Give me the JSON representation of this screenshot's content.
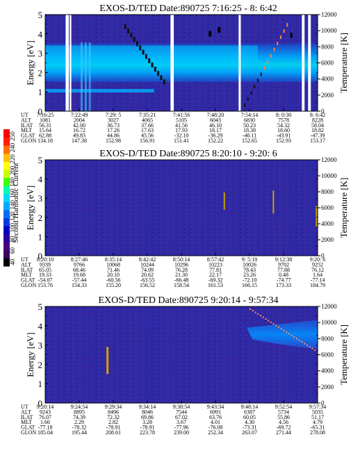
{
  "colorbar": {
    "label": "Second Harmonic Current",
    "ticks": [
      "40",
      "60",
      "80",
      "100",
      "120",
      "140",
      "160",
      "180",
      "200",
      "220",
      "240",
      "250"
    ],
    "colors": [
      "#000000",
      "#3a0060",
      "#4b007a",
      "#2a00a0",
      "#0000c8",
      "#0038e0",
      "#0070f0",
      "#00a8ff",
      "#00d8ff",
      "#00ffb0",
      "#40ff00",
      "#c8ff00",
      "#ffff00",
      "#ffc000",
      "#ff7000",
      "#ff2000",
      "#ff0000"
    ]
  },
  "chart_data": [
    {
      "type": "heatmap",
      "title": "EXOS-D/TED   Date:890725  7:16:25 - 8: 6:42",
      "ylabel": "Energy [eV]",
      "y2label": "Temperature [K]",
      "yticks": [
        "0",
        "1",
        "2",
        "3",
        "4",
        "5"
      ],
      "y2ticks": [
        "0",
        "2000",
        "4000",
        "6000",
        "8000",
        "10000",
        "12000"
      ],
      "ylim": [
        0,
        5
      ],
      "y2lim": [
        0,
        12000
      ],
      "rowlabels": [
        "UT",
        "ALT",
        "ILAT",
        "MLT",
        "GLAT",
        "GLON"
      ],
      "columns": [
        [
          "7:16:25",
          "1081",
          "56.31",
          "15.64",
          "62.88",
          "134.18"
        ],
        [
          "7:22:49",
          "2004",
          "42.00",
          "16.72",
          "49.83",
          "147.38"
        ],
        [
          "7:29: 5",
          "3027",
          "36.73",
          "17.26",
          "44.86",
          "152.98"
        ],
        [
          "7:35:21",
          "4065",
          "37.66",
          "17.63",
          "45.56",
          "156.91"
        ],
        [
          "7:41:56",
          "5105",
          "41.56",
          "17.93",
          "-32.10",
          "151.41"
        ],
        [
          "7:48:20",
          "6043",
          "46.10",
          "18.17",
          "-36.29",
          "152.22"
        ],
        [
          "7:54:14",
          "6830",
          "50.23",
          "18.38",
          "-40.11",
          "152.65"
        ],
        [
          "8: 0:30",
          "7578",
          "54.32",
          "18.60",
          "-43.91",
          "152.93"
        ],
        [
          "8: 6:42",
          "8228",
          "58.04",
          "18.82",
          "-47.39",
          "153.17"
        ]
      ]
    },
    {
      "type": "heatmap",
      "title": "EXOS-D/TED   Date:890725  8:20:10 - 9:20: 6",
      "ylabel": "Energy [eV]",
      "y2label": "Temperature [K]",
      "yticks": [
        "0",
        "1",
        "2",
        "3",
        "4",
        "5"
      ],
      "y2ticks": [
        "0",
        "2000",
        "4000",
        "6000",
        "8000",
        "10000",
        "12000"
      ],
      "ylim": [
        0,
        5
      ],
      "y2lim": [
        0,
        12000
      ],
      "rowlabels": [
        "UT",
        "ALT",
        "ILAT",
        "MLT",
        "GLAT",
        "GLON"
      ],
      "columns": [
        [
          "8:20:10",
          "9339",
          "65.05",
          "19.33",
          "-54.07",
          "153.76"
        ],
        [
          "8:27:46",
          "9766",
          "68.46",
          "19.68",
          "-57.44",
          "154.33"
        ],
        [
          "8:35:14",
          "10068",
          "71.46",
          "20.10",
          "-60.56",
          "155.20"
        ],
        [
          "8:42:42",
          "10244",
          "74.09",
          "20.62",
          "-63.55",
          "156.52"
        ],
        [
          "8:50:14",
          "10296",
          "76.28",
          "21.30",
          "-66.48",
          "158.54"
        ],
        [
          "8:57:42",
          "10223",
          "77.81",
          "22.17",
          "-69.32",
          "161.53"
        ],
        [
          "9: 5:10",
          "10026",
          "78.43",
          "23.26",
          "-72.10",
          "166.15"
        ],
        [
          "9:12:38",
          "9702",
          "77.88",
          "0.48",
          "-74.77",
          "173.33"
        ],
        [
          "9:20: 6",
          "9252",
          "76.12",
          "1.64",
          "-77.14",
          "184.79"
        ]
      ]
    },
    {
      "type": "heatmap",
      "title": "EXOS-D/TED   Date:890725  9:20:14 - 9:57:34",
      "ylabel": "Energy [eV]",
      "y2label": "Temperature [K]",
      "yticks": [
        "0",
        "1",
        "2",
        "3",
        "4",
        "5"
      ],
      "y2ticks": [
        "0",
        "2000",
        "4000",
        "6000",
        "8000",
        "10000",
        "12000"
      ],
      "ylim": [
        0,
        5
      ],
      "y2lim": [
        0,
        12000
      ],
      "rowlabels": [
        "UT",
        "ALT",
        "ILAT",
        "MLT",
        "GLAT",
        "GLON"
      ],
      "columns": [
        [
          "9:20:14",
          "9243",
          "76.07",
          "1.66",
          "-77.18",
          "185.04"
        ],
        [
          "9:24:54",
          "8895",
          "74.39",
          "2.29",
          "-78.32",
          "195.44"
        ],
        [
          "9:29:34",
          "8496",
          "72.32",
          "2.82",
          "-78.91",
          "208.61"
        ],
        [
          "9:34:14",
          "8046",
          "69.86",
          "3.28",
          "-78.91",
          "223.78"
        ],
        [
          "9:38:54",
          "7544",
          "67.02",
          "3.67",
          "-77.96",
          "239.00"
        ],
        [
          "9:43:34",
          "6991",
          "63.76",
          "4.01",
          "-76.08",
          "252.34"
        ],
        [
          "9:48:14",
          "6387",
          "60.05",
          "4.30",
          "-73.31",
          "263.07"
        ],
        [
          "9:52:54",
          "5734",
          "55.86",
          "4.56",
          "-69.72",
          "271.44"
        ],
        [
          "9:57:34",
          "5035",
          "51.17",
          "4.79",
          "-65.31",
          "278.08"
        ]
      ]
    }
  ]
}
